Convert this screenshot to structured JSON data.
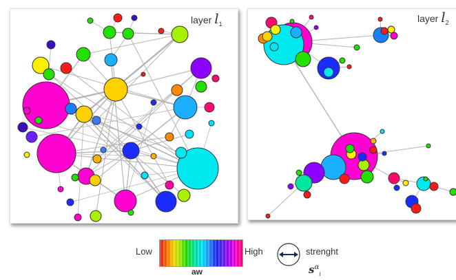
{
  "layers": [
    {
      "symbol": "l",
      "subscript": "1",
      "prefix": "layer"
    },
    {
      "symbol": "l",
      "subscript": "2",
      "prefix": "layer"
    }
  ],
  "legend": {
    "low": "Low",
    "high": "High",
    "colorbar_label": "aw",
    "strength_label": "strenght",
    "strength_symbol": "s",
    "strength_sup": "α",
    "strength_sub": "i"
  },
  "colors": {
    "edge": "#b4b4b4",
    "node_stroke": "#333333"
  }
}
